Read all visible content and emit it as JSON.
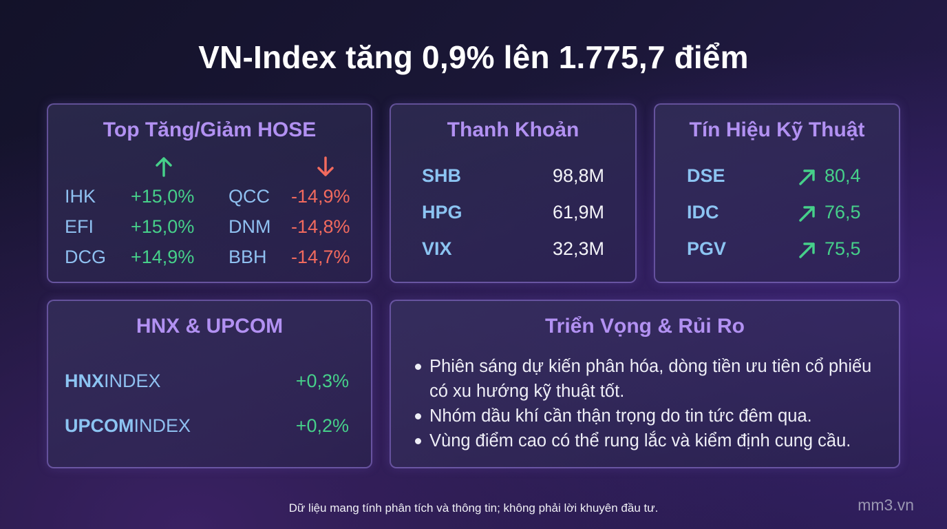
{
  "title": "VN-Index tăng 0,9% lên 1.775,7 điểm",
  "top_hose": {
    "title": "Top Tăng/Giảm HOSE",
    "gainers": [
      {
        "ticker": "IHK",
        "change": "+15,0%"
      },
      {
        "ticker": "EFI",
        "change": "+15,0%"
      },
      {
        "ticker": "DCG",
        "change": "+14,9%"
      }
    ],
    "losers": [
      {
        "ticker": "QCC",
        "change": "-14,9%"
      },
      {
        "ticker": "DNM",
        "change": "-14,8%"
      },
      {
        "ticker": "BBH",
        "change": "-14,7%"
      }
    ],
    "icons": {
      "up": "arrow-up-icon",
      "down": "arrow-down-icon"
    }
  },
  "liquidity": {
    "title": "Thanh Khoản",
    "rows": [
      {
        "ticker": "SHB",
        "value": "98,8M"
      },
      {
        "ticker": "HPG",
        "value": "61,9M"
      },
      {
        "ticker": "VIX",
        "value": "32,3M"
      }
    ]
  },
  "technical": {
    "title": "Tín Hiệu Kỹ Thuật",
    "rows": [
      {
        "ticker": "DSE",
        "value": "80,4",
        "icon": "trend-up-icon"
      },
      {
        "ticker": "IDC",
        "value": "76,5",
        "icon": "trend-up-icon"
      },
      {
        "ticker": "PGV",
        "value": "75,5",
        "icon": "trend-up-icon"
      }
    ]
  },
  "hnx_upcom": {
    "title": "HNX & UPCOM",
    "rows": [
      {
        "name_bold": "HNX",
        "name_rest": "INDEX",
        "change": "+0,3%"
      },
      {
        "name_bold": "UPCOM",
        "name_rest": "INDEX",
        "change": "+0,2%"
      }
    ]
  },
  "outlook": {
    "title": "Triển Vọng & Rủi Ro",
    "bullets": [
      "Phiên sáng dự kiến phân hóa, dòng tiền ưu tiên cổ phiếu có xu hướng kỹ thuật tốt.",
      "Nhóm dầu khí cần thận trọng do tin tức đêm qua.",
      "Vùng điểm cao có thể rung lắc và kiểm định cung cầu."
    ]
  },
  "footer": "Dữ liệu mang tính phân tích và thông tin; không phải lời khuyên đầu tư.",
  "watermark": "mm3.vn",
  "colors": {
    "up": "#46d08a",
    "down": "#f26a5e",
    "accent": "#b291f2",
    "ticker": "#8cc4f2"
  }
}
